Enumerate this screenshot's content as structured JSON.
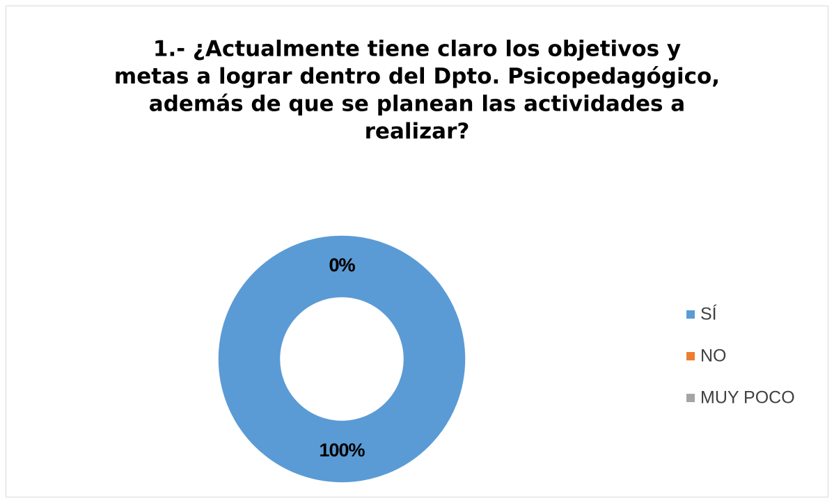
{
  "chart_data": {
    "type": "donut",
    "title": [
      "1.- ¿Actualmente tiene claro los objetivos y",
      "metas a lograr dentro del Dpto. Psicopedagógico,",
      "además de que se planean las actividades a",
      "realizar?"
    ],
    "categories": [
      "SÍ",
      "NO",
      "MUY POCO"
    ],
    "values": [
      100,
      0,
      0
    ],
    "value_labels": [
      "100%",
      "0%",
      "0%"
    ],
    "colors": [
      "#5b9bd5",
      "#ed7d31",
      "#a5a5a5"
    ],
    "legend": "right"
  }
}
